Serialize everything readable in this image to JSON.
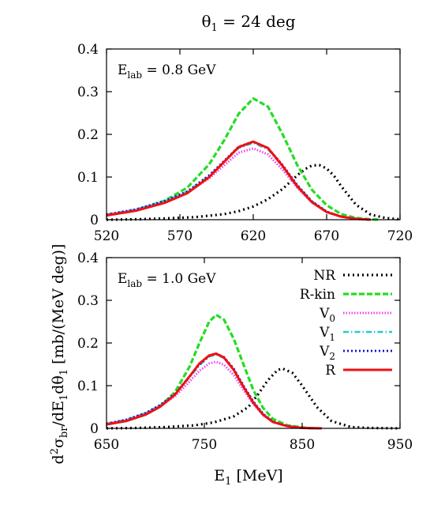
{
  "figure": {
    "title_prefix": "θ",
    "title_sub": "1",
    "title_suffix": " = 24 deg",
    "ylabel_parts": [
      {
        "t": "d",
        "s": null
      },
      {
        "t": "2",
        "s": "super"
      },
      {
        "t": "σ",
        "s": null
      },
      {
        "t": "br",
        "s": "sub"
      },
      {
        "t": "/dE",
        "s": null
      },
      {
        "t": "1",
        "s": "sub"
      },
      {
        "t": "dθ",
        "s": null
      },
      {
        "t": "1",
        "s": "sub"
      },
      {
        "t": " [mb/(MeV deg)]",
        "s": null
      }
    ],
    "xlabel_main": "E",
    "xlabel_sub": "1",
    "xlabel_unit": " [MeV]"
  },
  "colors": {
    "NR": "#000000",
    "R-kin": "#22dd22",
    "V0": "#ee44ee",
    "V1": "#22cccc",
    "V2": "#1111cc",
    "R": "#ee1111"
  },
  "legend": [
    {
      "key": "NR",
      "main": "NR",
      "sub": ""
    },
    {
      "key": "R-kin",
      "main": "R-kin",
      "sub": ""
    },
    {
      "key": "V0",
      "main": "V",
      "sub": "0"
    },
    {
      "key": "V1",
      "main": "V",
      "sub": "1"
    },
    {
      "key": "V2",
      "main": "V",
      "sub": "2"
    },
    {
      "key": "R",
      "main": "R",
      "sub": ""
    }
  ],
  "chart_data": [
    {
      "type": "line",
      "panel_label_main": "E",
      "panel_label_sub": "lab",
      "panel_label_value": " = 0.8 GeV",
      "xlim": [
        520,
        720
      ],
      "ylim": [
        0,
        0.4
      ],
      "xticks": [
        "520",
        "570",
        "620",
        "670",
        "720"
      ],
      "yticks": [
        "0",
        "0.1",
        "0.2",
        "0.3",
        "0.4"
      ],
      "series": [
        {
          "name": "NR",
          "x": [
            520,
            540,
            560,
            580,
            600,
            610,
            620,
            630,
            640,
            650,
            655,
            660,
            665,
            670,
            675,
            680,
            690,
            700,
            710,
            720
          ],
          "y": [
            0.0,
            0.001,
            0.003,
            0.006,
            0.013,
            0.02,
            0.031,
            0.048,
            0.072,
            0.104,
            0.118,
            0.127,
            0.128,
            0.12,
            0.103,
            0.078,
            0.035,
            0.012,
            0.004,
            0.001
          ]
        },
        {
          "name": "R-kin",
          "x": [
            520,
            540,
            560,
            575,
            590,
            600,
            610,
            620,
            630,
            640,
            650,
            660,
            670,
            680,
            690,
            700,
            706
          ],
          "y": [
            0.01,
            0.022,
            0.045,
            0.075,
            0.13,
            0.185,
            0.248,
            0.284,
            0.265,
            0.2,
            0.128,
            0.07,
            0.034,
            0.013,
            0.004,
            0.001,
            0.0
          ]
        },
        {
          "name": "V0",
          "x": [
            520,
            540,
            560,
            575,
            590,
            600,
            610,
            620,
            630,
            640,
            650,
            660,
            670,
            680,
            690,
            700
          ],
          "y": [
            0.012,
            0.024,
            0.042,
            0.063,
            0.097,
            0.127,
            0.157,
            0.167,
            0.153,
            0.117,
            0.075,
            0.04,
            0.018,
            0.007,
            0.002,
            0.0
          ]
        },
        {
          "name": "V1",
          "x": [
            520,
            540,
            560,
            575,
            590,
            600,
            610,
            620,
            630,
            640,
            650,
            660,
            670,
            680,
            690,
            700
          ],
          "y": [
            0.012,
            0.024,
            0.044,
            0.066,
            0.103,
            0.135,
            0.168,
            0.18,
            0.165,
            0.126,
            0.08,
            0.043,
            0.019,
            0.007,
            0.002,
            0.0
          ]
        },
        {
          "name": "V2",
          "x": [
            520,
            540,
            560,
            575,
            590,
            600,
            610,
            620,
            630,
            640,
            650,
            660,
            670,
            680,
            690,
            700
          ],
          "y": [
            0.012,
            0.024,
            0.044,
            0.066,
            0.104,
            0.137,
            0.171,
            0.183,
            0.168,
            0.128,
            0.081,
            0.043,
            0.019,
            0.007,
            0.002,
            0.0
          ]
        },
        {
          "name": "R",
          "x": [
            520,
            540,
            560,
            575,
            590,
            600,
            610,
            620,
            630,
            640,
            650,
            660,
            670,
            680,
            690,
            700
          ],
          "y": [
            0.01,
            0.021,
            0.04,
            0.062,
            0.1,
            0.135,
            0.17,
            0.183,
            0.168,
            0.126,
            0.078,
            0.041,
            0.018,
            0.007,
            0.002,
            0.0
          ]
        }
      ]
    },
    {
      "type": "line",
      "panel_label_main": "E",
      "panel_label_sub": "lab",
      "panel_label_value": " = 1.0 GeV",
      "xlim": [
        650,
        950
      ],
      "ylim": [
        0,
        0.4
      ],
      "xticks": [
        "650",
        "750",
        "850",
        "950"
      ],
      "yticks": [
        "0",
        "0.1",
        "0.2",
        "0.3",
        "0.4"
      ],
      "series": [
        {
          "name": "NR",
          "x": [
            650,
            680,
            710,
            740,
            760,
            780,
            795,
            805,
            815,
            825,
            830,
            840,
            850,
            865,
            880,
            900,
            920,
            950
          ],
          "y": [
            0.0,
            0.001,
            0.003,
            0.007,
            0.014,
            0.028,
            0.05,
            0.08,
            0.113,
            0.137,
            0.14,
            0.13,
            0.1,
            0.05,
            0.017,
            0.003,
            0.001,
            0.0
          ]
        },
        {
          "name": "R-kin",
          "x": [
            650,
            670,
            690,
            705,
            720,
            735,
            745,
            755,
            762,
            770,
            780,
            790,
            800,
            810,
            820,
            835,
            850,
            860
          ],
          "y": [
            0.01,
            0.018,
            0.033,
            0.052,
            0.085,
            0.145,
            0.2,
            0.25,
            0.266,
            0.255,
            0.21,
            0.15,
            0.09,
            0.048,
            0.022,
            0.007,
            0.002,
            0.0
          ]
        },
        {
          "name": "V0",
          "x": [
            650,
            670,
            690,
            705,
            720,
            735,
            745,
            755,
            762,
            770,
            780,
            790,
            800,
            810,
            820,
            835,
            850,
            870
          ],
          "y": [
            0.011,
            0.02,
            0.035,
            0.052,
            0.075,
            0.11,
            0.135,
            0.152,
            0.156,
            0.149,
            0.125,
            0.09,
            0.057,
            0.031,
            0.015,
            0.005,
            0.001,
            0.0
          ]
        },
        {
          "name": "V1",
          "x": [
            650,
            670,
            690,
            705,
            720,
            735,
            745,
            755,
            762,
            770,
            780,
            790,
            800,
            810,
            820,
            835,
            850,
            870
          ],
          "y": [
            0.011,
            0.02,
            0.036,
            0.054,
            0.08,
            0.12,
            0.148,
            0.168,
            0.173,
            0.165,
            0.138,
            0.099,
            0.062,
            0.034,
            0.016,
            0.005,
            0.001,
            0.0
          ]
        },
        {
          "name": "V2",
          "x": [
            650,
            670,
            690,
            705,
            720,
            735,
            745,
            755,
            762,
            770,
            780,
            790,
            800,
            810,
            820,
            835,
            850,
            870
          ],
          "y": [
            0.011,
            0.02,
            0.036,
            0.055,
            0.081,
            0.122,
            0.15,
            0.17,
            0.175,
            0.167,
            0.14,
            0.1,
            0.063,
            0.034,
            0.016,
            0.005,
            0.001,
            0.0
          ]
        },
        {
          "name": "R",
          "x": [
            650,
            670,
            690,
            705,
            720,
            735,
            745,
            755,
            762,
            770,
            780,
            790,
            800,
            810,
            820,
            835,
            850,
            870
          ],
          "y": [
            0.009,
            0.017,
            0.032,
            0.051,
            0.079,
            0.122,
            0.152,
            0.171,
            0.175,
            0.166,
            0.137,
            0.097,
            0.06,
            0.032,
            0.015,
            0.005,
            0.001,
            0.0
          ]
        }
      ]
    }
  ]
}
